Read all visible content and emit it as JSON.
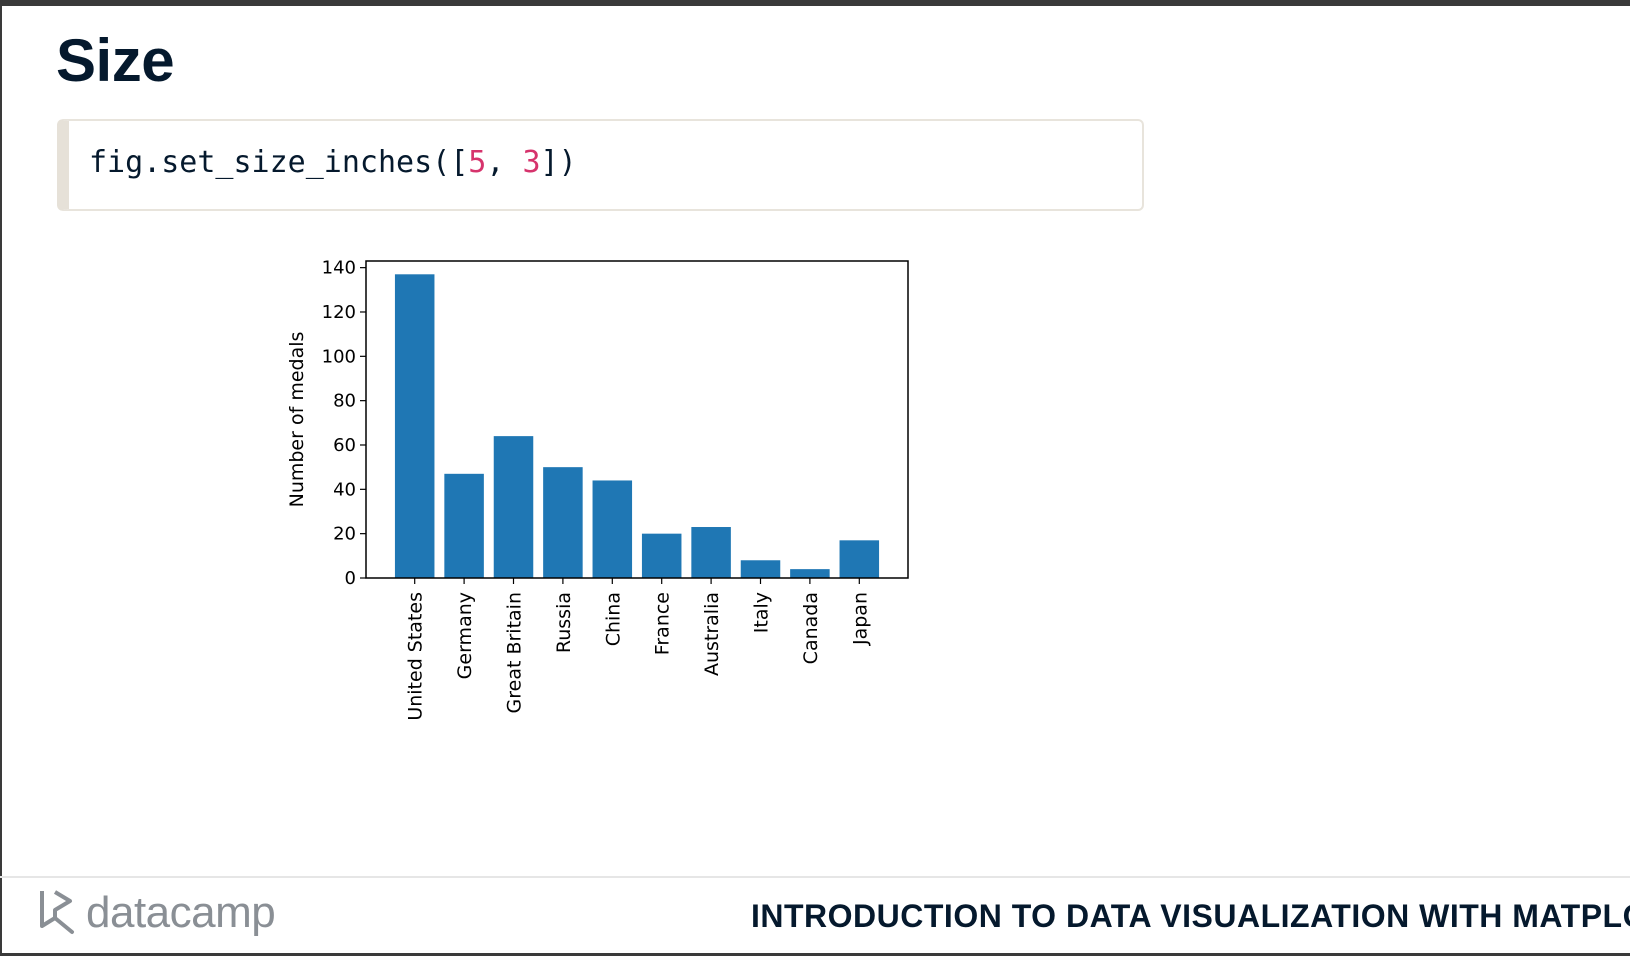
{
  "slide": {
    "title": "Size",
    "code": {
      "fn": "fig.set_size_inches([",
      "a": "5",
      "sep": ", ",
      "b": "3",
      "end": "])"
    }
  },
  "footer": {
    "logo_text": "datacamp",
    "course_title": "INTRODUCTION TO DATA VISUALIZATION WITH MATPLOT"
  },
  "colors": {
    "bar": "#1f77b4",
    "navy": "#05192d",
    "number": "#d6336c"
  },
  "chart_data": {
    "type": "bar",
    "categories": [
      "United States",
      "Germany",
      "Great Britain",
      "Russia",
      "China",
      "France",
      "Australia",
      "Italy",
      "Canada",
      "Japan"
    ],
    "values": [
      137,
      47,
      64,
      50,
      44,
      20,
      23,
      8,
      4,
      17
    ],
    "title": "",
    "xlabel": "",
    "ylabel": "Number of medals",
    "ylim": [
      0,
      143
    ],
    "yticks": [
      0,
      20,
      40,
      60,
      80,
      100,
      120,
      140
    ],
    "grid": false
  }
}
